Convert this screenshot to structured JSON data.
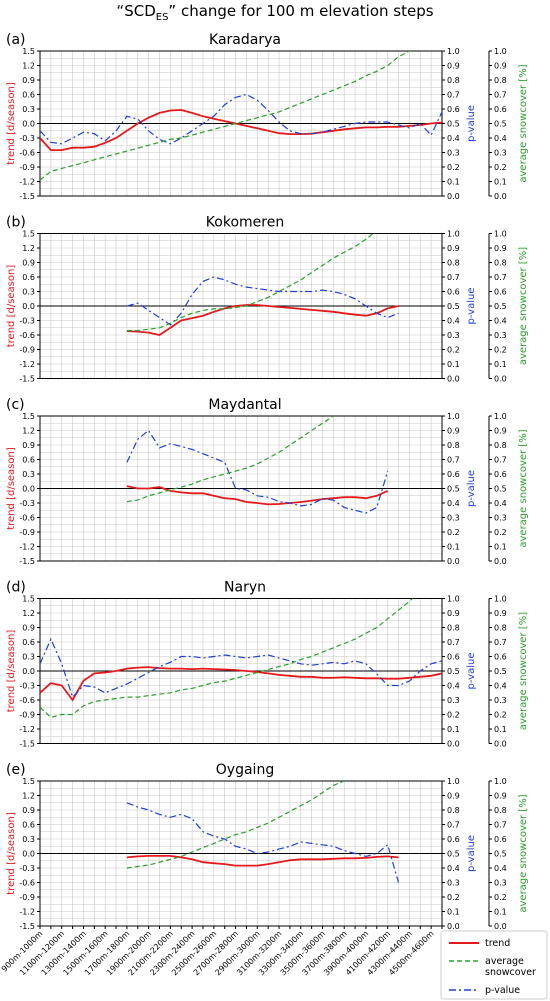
{
  "figure": {
    "title_pre": "“SCD",
    "title_sub": "ES",
    "title_post": "” change for  100 m elevation steps"
  },
  "axes_labels": {
    "left": "trend [d/season]",
    "right1": "p-value",
    "right2": "average snowcover [%]"
  },
  "legend": {
    "position": "bottom-right",
    "entries": [
      {
        "label": "trend",
        "color": "#e41a1c",
        "style": "solid"
      },
      {
        "label": "average snowcover",
        "color": "#2ca02c",
        "style": "dashed"
      },
      {
        "label": "p-value",
        "color": "#1f3fd6",
        "style": "dashdot"
      }
    ]
  },
  "colors": {
    "trend": "#e41a1c",
    "snow": "#2ca02c",
    "pvalue": "#1f3fd6",
    "grid": "#c8c8c8"
  },
  "chart_data": [
    {
      "type": "line",
      "panel": "(a)",
      "title": "Karadarya",
      "x": [
        "900m-1000m",
        "1000m-1100m",
        "1100m-1200m",
        "1200m-1300m",
        "1300m-1400m",
        "1400m-1500m",
        "1500m-1600m",
        "1600m-1700m",
        "1700m-1800m",
        "1800m-1900m",
        "1900m-2000m",
        "2000m-2100m",
        "2100m-2200m",
        "2200m-2300m",
        "2300m-2400m",
        "2400m-2500m",
        "2500m-2600m",
        "2600m-2700m",
        "2700m-2800m",
        "2800m-2900m",
        "2900m-3000m",
        "3000m-3100m",
        "3100m-3200m",
        "3200m-3300m",
        "3300m-3400m",
        "3400m-3500m",
        "3500m-3600m",
        "3600m-3700m",
        "3700m-3800m",
        "3800m-3900m",
        "3900m-4000m",
        "4000m-4100m",
        "4100m-4200m",
        "4200m-4300m",
        "4300m-4400m",
        "4400m-4500m",
        "4500m-4600m",
        "4600m-4700m"
      ],
      "ylim_trend": [
        -1.5,
        1.5
      ],
      "ylim_p": [
        0,
        1
      ],
      "ylim_snow": [
        0,
        1
      ],
      "series": [
        {
          "name": "trend",
          "axis": "trend",
          "values": [
            -0.3,
            -0.55,
            -0.55,
            -0.5,
            -0.5,
            -0.48,
            -0.4,
            -0.3,
            -0.15,
            0.0,
            0.12,
            0.22,
            0.27,
            0.28,
            0.22,
            0.15,
            0.1,
            0.05,
            0.0,
            -0.05,
            -0.1,
            -0.15,
            -0.2,
            -0.22,
            -0.22,
            -0.21,
            -0.18,
            -0.15,
            -0.12,
            -0.1,
            -0.08,
            -0.08,
            -0.07,
            -0.07,
            -0.05,
            -0.03,
            0.0,
            0.02
          ]
        },
        {
          "name": "p-value",
          "axis": "p",
          "values": [
            0.45,
            0.37,
            0.36,
            0.4,
            0.44,
            0.43,
            0.38,
            0.45,
            0.55,
            0.53,
            0.45,
            0.39,
            0.36,
            0.4,
            0.45,
            0.5,
            0.55,
            0.63,
            0.68,
            0.7,
            0.66,
            0.59,
            0.51,
            0.45,
            0.43,
            0.43,
            0.44,
            0.46,
            0.48,
            0.5,
            0.51,
            0.51,
            0.51,
            0.49,
            0.47,
            0.5,
            0.42,
            0.58
          ]
        },
        {
          "name": "average snowcover",
          "axis": "snow",
          "values": [
            0.11,
            0.17,
            0.19,
            0.21,
            0.23,
            0.25,
            0.27,
            0.29,
            0.31,
            0.33,
            0.35,
            0.37,
            0.39,
            0.4,
            0.42,
            0.44,
            0.46,
            0.48,
            0.5,
            0.52,
            0.54,
            0.56,
            0.58,
            0.61,
            0.64,
            0.67,
            0.7,
            0.73,
            0.76,
            0.79,
            0.83,
            0.86,
            0.9,
            0.96,
            1.0,
            1.05,
            null,
            null
          ]
        }
      ]
    },
    {
      "type": "line",
      "panel": "(b)",
      "title": "Kokomeren",
      "x": [
        "900m-1000m",
        "1000m-1100m",
        "1100m-1200m",
        "1200m-1300m",
        "1300m-1400m",
        "1400m-1500m",
        "1500m-1600m",
        "1600m-1700m",
        "1700m-1800m",
        "1800m-1900m",
        "1900m-2000m",
        "2000m-2100m",
        "2100m-2200m",
        "2200m-2300m",
        "2300m-2400m",
        "2400m-2500m",
        "2500m-2600m",
        "2600m-2700m",
        "2700m-2800m",
        "2800m-2900m",
        "2900m-3000m",
        "3000m-3100m",
        "3100m-3200m",
        "3200m-3300m",
        "3300m-3400m",
        "3400m-3500m",
        "3500m-3600m",
        "3600m-3700m",
        "3700m-3800m",
        "3800m-3900m",
        "3900m-4000m",
        "4000m-4100m",
        "4100m-4200m",
        "4200m-4300m",
        "4300m-4400m",
        "4400m-4500m",
        "4500m-4600m",
        "4600m-4700m"
      ],
      "ylim_trend": [
        -1.5,
        1.5
      ],
      "ylim_p": [
        0,
        1
      ],
      "ylim_snow": [
        0,
        1
      ],
      "series": [
        {
          "name": "trend",
          "axis": "trend",
          "values": [
            null,
            null,
            null,
            null,
            null,
            null,
            null,
            null,
            -0.52,
            -0.53,
            -0.55,
            -0.6,
            -0.45,
            -0.3,
            -0.25,
            -0.2,
            -0.12,
            -0.05,
            0.0,
            0.02,
            0.02,
            0.0,
            -0.02,
            -0.04,
            -0.06,
            -0.08,
            -0.1,
            -0.12,
            -0.15,
            -0.18,
            -0.2,
            -0.15,
            -0.05,
            0.0,
            null,
            null,
            null,
            null
          ]
        },
        {
          "name": "p-value",
          "axis": "p",
          "values": [
            null,
            null,
            null,
            null,
            null,
            null,
            null,
            null,
            0.5,
            0.52,
            0.47,
            0.42,
            0.37,
            0.45,
            0.58,
            0.67,
            0.7,
            0.68,
            0.65,
            0.63,
            0.62,
            0.61,
            0.6,
            0.6,
            0.6,
            0.6,
            0.61,
            0.6,
            0.58,
            0.55,
            0.5,
            0.45,
            0.42,
            0.45,
            null,
            null,
            null,
            null
          ]
        },
        {
          "name": "average snowcover",
          "axis": "snow",
          "values": [
            null,
            null,
            null,
            null,
            null,
            null,
            null,
            null,
            0.33,
            0.33,
            0.34,
            0.35,
            0.38,
            0.42,
            0.45,
            0.47,
            0.48,
            0.48,
            0.49,
            0.5,
            0.53,
            0.56,
            0.6,
            0.64,
            0.68,
            0.73,
            0.78,
            0.83,
            0.87,
            0.91,
            0.96,
            1.02,
            null,
            null,
            null,
            null,
            null,
            null
          ]
        }
      ]
    },
    {
      "type": "line",
      "panel": "(c)",
      "title": "Maydantal",
      "x": [
        "900m-1000m",
        "1000m-1100m",
        "1100m-1200m",
        "1200m-1300m",
        "1300m-1400m",
        "1400m-1500m",
        "1500m-1600m",
        "1600m-1700m",
        "1700m-1800m",
        "1800m-1900m",
        "1900m-2000m",
        "2000m-2100m",
        "2100m-2200m",
        "2200m-2300m",
        "2300m-2400m",
        "2400m-2500m",
        "2500m-2600m",
        "2600m-2700m",
        "2700m-2800m",
        "2800m-2900m",
        "2900m-3000m",
        "3000m-3100m",
        "3100m-3200m",
        "3200m-3300m",
        "3300m-3400m",
        "3400m-3500m",
        "3500m-3600m",
        "3600m-3700m",
        "3700m-3800m",
        "3800m-3900m",
        "3900m-4000m",
        "4000m-4100m",
        "4100m-4200m",
        "4200m-4300m",
        "4300m-4400m",
        "4400m-4500m",
        "4500m-4600m",
        "4600m-4700m"
      ],
      "ylim_trend": [
        -1.5,
        1.5
      ],
      "ylim_p": [
        0,
        1
      ],
      "ylim_snow": [
        0,
        1
      ],
      "series": [
        {
          "name": "trend",
          "axis": "trend",
          "values": [
            null,
            null,
            null,
            null,
            null,
            null,
            null,
            null,
            0.05,
            0.0,
            0.0,
            0.03,
            -0.05,
            -0.08,
            -0.1,
            -0.1,
            -0.15,
            -0.2,
            -0.22,
            -0.28,
            -0.3,
            -0.33,
            -0.32,
            -0.3,
            -0.28,
            -0.25,
            -0.22,
            -0.2,
            -0.18,
            -0.18,
            -0.2,
            -0.15,
            -0.05,
            null,
            null,
            null,
            null,
            null
          ]
        },
        {
          "name": "p-value",
          "axis": "p",
          "values": [
            null,
            null,
            null,
            null,
            null,
            null,
            null,
            null,
            0.68,
            0.84,
            0.9,
            0.78,
            0.81,
            0.79,
            0.77,
            0.74,
            0.71,
            0.68,
            0.5,
            0.49,
            0.45,
            0.44,
            0.41,
            0.4,
            0.38,
            0.39,
            0.43,
            0.42,
            0.37,
            0.35,
            0.33,
            0.37,
            0.62,
            null,
            null,
            null,
            null,
            null
          ]
        },
        {
          "name": "average snowcover",
          "axis": "snow",
          "values": [
            null,
            null,
            null,
            null,
            null,
            null,
            null,
            null,
            0.41,
            0.42,
            0.45,
            0.47,
            0.49,
            0.51,
            0.53,
            0.56,
            0.58,
            0.6,
            0.62,
            0.64,
            0.67,
            0.71,
            0.75,
            0.8,
            0.85,
            0.9,
            0.95,
            1.0,
            null,
            null,
            null,
            null,
            null,
            null,
            null,
            null,
            null,
            null
          ]
        }
      ]
    },
    {
      "type": "line",
      "panel": "(d)",
      "title": "Naryn",
      "x": [
        "900m-1000m",
        "1000m-1100m",
        "1100m-1200m",
        "1200m-1300m",
        "1300m-1400m",
        "1400m-1500m",
        "1500m-1600m",
        "1600m-1700m",
        "1700m-1800m",
        "1800m-1900m",
        "1900m-2000m",
        "2000m-2100m",
        "2100m-2200m",
        "2200m-2300m",
        "2300m-2400m",
        "2400m-2500m",
        "2500m-2600m",
        "2600m-2700m",
        "2700m-2800m",
        "2800m-2900m",
        "2900m-3000m",
        "3000m-3100m",
        "3100m-3200m",
        "3200m-3300m",
        "3300m-3400m",
        "3400m-3500m",
        "3500m-3600m",
        "3600m-3700m",
        "3700m-3800m",
        "3800m-3900m",
        "3900m-4000m",
        "4000m-4100m",
        "4100m-4200m",
        "4200m-4300m",
        "4300m-4400m",
        "4400m-4500m",
        "4500m-4600m",
        "4600m-4700m"
      ],
      "ylim_trend": [
        -1.5,
        1.5
      ],
      "ylim_p": [
        0,
        1
      ],
      "ylim_snow": [
        0,
        1
      ],
      "series": [
        {
          "name": "trend",
          "axis": "trend",
          "values": [
            -0.45,
            -0.25,
            -0.3,
            -0.6,
            -0.2,
            -0.05,
            -0.03,
            0.0,
            0.05,
            0.07,
            0.08,
            0.06,
            0.05,
            0.05,
            0.04,
            0.05,
            0.04,
            0.03,
            0.02,
            0.0,
            -0.02,
            -0.05,
            -0.08,
            -0.1,
            -0.12,
            -0.12,
            -0.14,
            -0.14,
            -0.13,
            -0.14,
            -0.15,
            -0.15,
            -0.16,
            -0.16,
            -0.14,
            -0.12,
            -0.1,
            -0.05
          ]
        },
        {
          "name": "p-value",
          "axis": "p",
          "values": [
            0.55,
            0.72,
            0.55,
            0.32,
            0.4,
            0.39,
            0.35,
            0.38,
            0.41,
            0.45,
            0.49,
            0.53,
            0.56,
            0.6,
            0.6,
            0.59,
            0.6,
            0.61,
            0.6,
            0.59,
            0.6,
            0.61,
            0.59,
            0.57,
            0.55,
            0.54,
            0.55,
            0.56,
            0.55,
            0.57,
            0.55,
            0.48,
            0.4,
            0.4,
            0.43,
            0.5,
            0.55,
            0.57
          ]
        },
        {
          "name": "average snowcover",
          "axis": "snow",
          "values": [
            0.25,
            0.18,
            0.2,
            0.2,
            0.26,
            0.29,
            0.3,
            0.31,
            0.32,
            0.32,
            0.33,
            0.34,
            0.35,
            0.37,
            0.38,
            0.4,
            0.42,
            0.43,
            0.45,
            0.47,
            0.49,
            0.51,
            0.53,
            0.55,
            0.58,
            0.6,
            0.63,
            0.66,
            0.69,
            0.72,
            0.76,
            0.8,
            0.86,
            0.92,
            0.98,
            1.05,
            null,
            null
          ]
        }
      ]
    },
    {
      "type": "line",
      "panel": "(e)",
      "title": "Oygaing",
      "x": [
        "900m-1000m",
        "1000m-1100m",
        "1100m-1200m",
        "1200m-1300m",
        "1300m-1400m",
        "1400m-1500m",
        "1500m-1600m",
        "1600m-1700m",
        "1700m-1800m",
        "1800m-1900m",
        "1900m-2000m",
        "2000m-2100m",
        "2100m-2200m",
        "2200m-2300m",
        "2300m-2400m",
        "2400m-2500m",
        "2500m-2600m",
        "2600m-2700m",
        "2700m-2800m",
        "2800m-2900m",
        "2900m-3000m",
        "3000m-3100m",
        "3100m-3200m",
        "3200m-3300m",
        "3300m-3400m",
        "3400m-3500m",
        "3500m-3600m",
        "3600m-3700m",
        "3700m-3800m",
        "3800m-3900m",
        "3900m-4000m",
        "4000m-4100m",
        "4100m-4200m",
        "4200m-4300m",
        "4300m-4400m",
        "4400m-4500m",
        "4500m-4600m",
        "4600m-4700m"
      ],
      "ylim_trend": [
        -1.5,
        1.5
      ],
      "ylim_p": [
        0,
        1
      ],
      "ylim_snow": [
        0,
        1
      ],
      "series": [
        {
          "name": "trend",
          "axis": "trend",
          "values": [
            null,
            null,
            null,
            null,
            null,
            null,
            null,
            null,
            -0.08,
            -0.06,
            -0.05,
            -0.05,
            -0.05,
            -0.08,
            -0.12,
            -0.18,
            -0.2,
            -0.22,
            -0.25,
            -0.25,
            -0.25,
            -0.22,
            -0.18,
            -0.14,
            -0.12,
            -0.12,
            -0.12,
            -0.11,
            -0.1,
            -0.1,
            -0.09,
            -0.07,
            -0.06,
            -0.08,
            null,
            null,
            null,
            null
          ]
        },
        {
          "name": "p-value",
          "axis": "p",
          "values": [
            null,
            null,
            null,
            null,
            null,
            null,
            null,
            null,
            0.85,
            0.82,
            0.8,
            0.77,
            0.75,
            0.77,
            0.74,
            0.65,
            0.62,
            0.6,
            0.55,
            0.53,
            0.5,
            0.51,
            0.53,
            0.55,
            0.58,
            0.57,
            0.56,
            0.55,
            0.52,
            0.5,
            0.48,
            0.5,
            0.56,
            0.3,
            null,
            null,
            null,
            null
          ]
        },
        {
          "name": "average snowcover",
          "axis": "snow",
          "values": [
            null,
            null,
            null,
            null,
            null,
            null,
            null,
            null,
            0.4,
            0.41,
            0.42,
            0.44,
            0.46,
            0.48,
            0.51,
            0.54,
            0.57,
            0.6,
            0.63,
            0.65,
            0.68,
            0.71,
            0.75,
            0.79,
            0.83,
            0.87,
            0.92,
            0.97,
            1.0,
            null,
            null,
            null,
            null,
            null,
            null,
            null,
            null,
            null
          ]
        }
      ]
    }
  ]
}
